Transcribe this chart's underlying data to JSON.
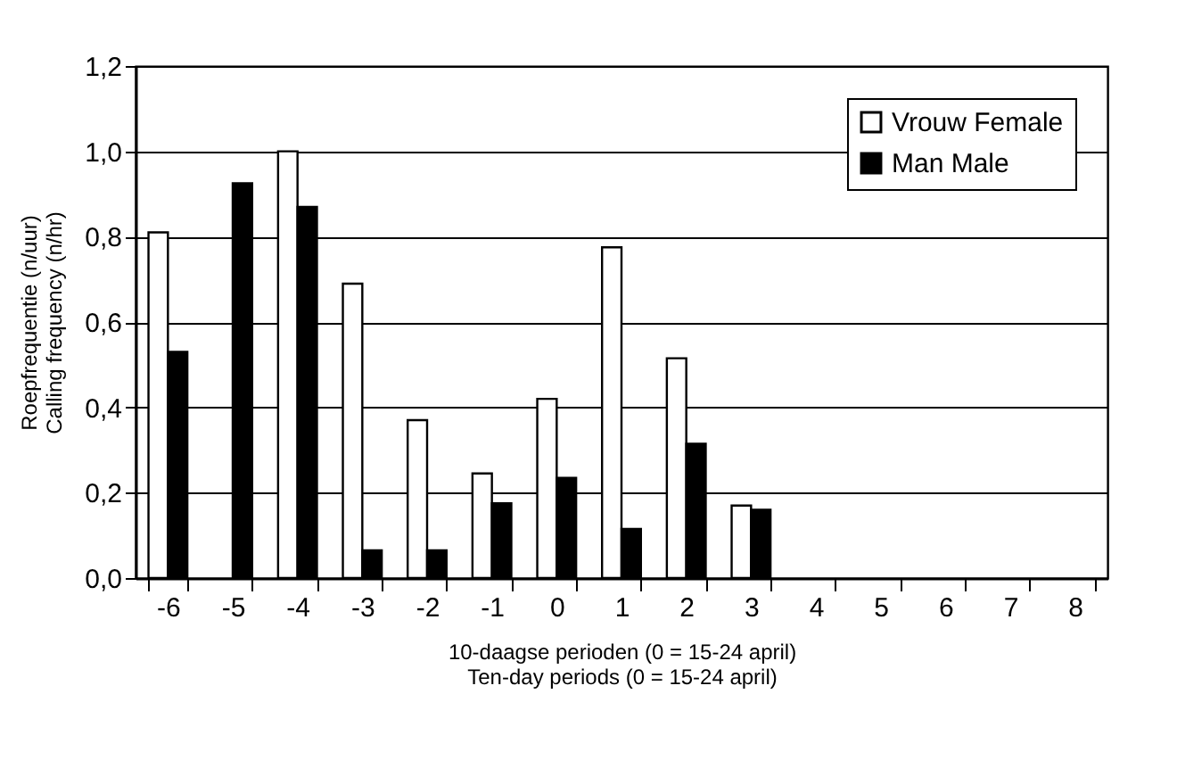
{
  "chart_data": {
    "type": "bar",
    "xlabel": "10-daagse perioden (0 = 15-24 april)\nTen-day periods (0 = 15-24 april)",
    "ylabel": "Roepfrequentie (n/uur)\nCalling frequency (n/hr)",
    "categories": [
      "-6",
      "-5",
      "-4",
      "-3",
      "-2",
      "-1",
      "0",
      "1",
      "2",
      "3",
      "4",
      "5",
      "6",
      "7",
      "8"
    ],
    "series": [
      {
        "name": "Vrouw Female",
        "color": "#ffffff",
        "values": [
          0.81,
          null,
          1.0,
          0.69,
          0.37,
          0.245,
          0.42,
          0.775,
          0.515,
          0.17,
          null,
          null,
          null,
          null,
          null
        ]
      },
      {
        "name": "Man Male",
        "color": "#000000",
        "values": [
          0.53,
          0.925,
          0.87,
          0.065,
          0.065,
          0.175,
          0.235,
          0.115,
          0.315,
          0.16,
          null,
          null,
          null,
          null,
          null
        ]
      }
    ],
    "ylim": [
      0,
      1.2
    ],
    "yticks": [
      {
        "value": 0,
        "label": "0,0"
      },
      {
        "value": 0.2,
        "label": "0,2"
      },
      {
        "value": 0.4,
        "label": "0,4"
      },
      {
        "value": 0.6,
        "label": "0,6"
      },
      {
        "value": 0.8,
        "label": "0,8"
      },
      {
        "value": 1.0,
        "label": "1,0"
      },
      {
        "value": 1.2,
        "label": "1,2"
      }
    ],
    "grid": "y",
    "legend": "top right"
  }
}
